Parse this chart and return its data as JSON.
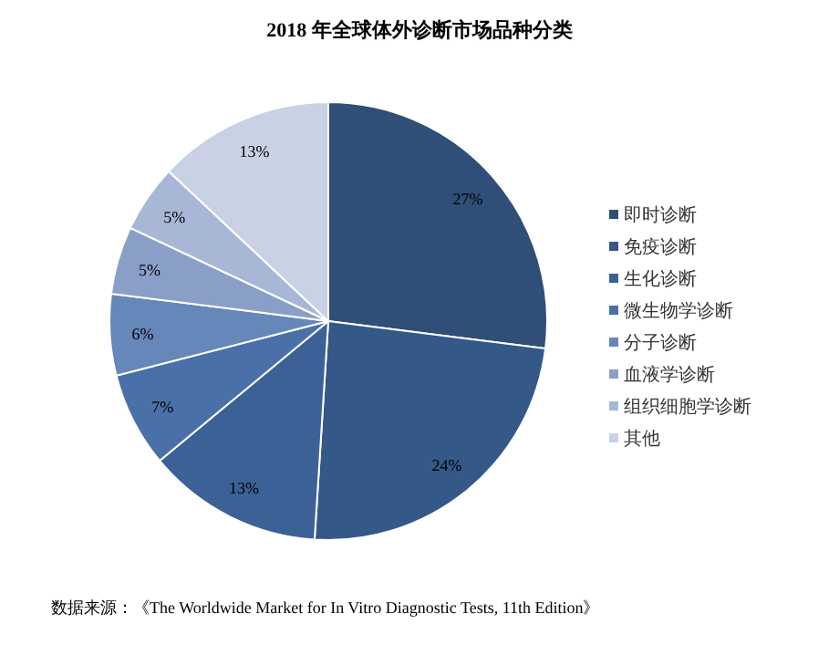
{
  "chart_data": {
    "type": "pie",
    "title": "2018 年全球体外诊断市场品种分类",
    "categories": [
      "即时诊断",
      "免疫诊断",
      "生化诊断",
      "微生物学诊断",
      "分子诊断",
      "血液学诊断",
      "组织细胞学诊断",
      "其他"
    ],
    "values": [
      27,
      24,
      13,
      7,
      6,
      5,
      5,
      13
    ],
    "colors": [
      "#2f4e78",
      "#345888",
      "#3b6196",
      "#4a70a9",
      "#6687b9",
      "#8a9fc8",
      "#a9b7d7",
      "#c9d1e5"
    ],
    "value_labels": [
      "27%",
      "24%",
      "13%",
      "7%",
      "6%",
      "5%",
      "5%",
      "13%"
    ],
    "legend": "right",
    "annotations": [
      "数据来源：《The Worldwide Market for In Vitro Diagnostic Tests, 11th Edition》"
    ]
  }
}
